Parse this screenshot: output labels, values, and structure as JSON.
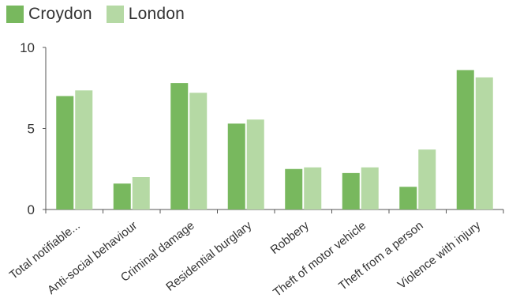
{
  "chart_data": {
    "type": "bar",
    "categories": [
      "Total notifiable...",
      "Anti-social behaviour",
      "Criminal damage",
      "Residential burglary",
      "Robbery",
      "Theft of motor vehicle",
      "Theft from a person",
      "Violence with injury"
    ],
    "series": [
      {
        "name": "Croydon",
        "color": "#78b85e",
        "values": [
          7.0,
          1.6,
          7.8,
          5.3,
          2.5,
          2.25,
          1.4,
          8.6
        ]
      },
      {
        "name": "London",
        "color": "#b5d9a4",
        "values": [
          7.35,
          2.0,
          7.2,
          5.55,
          2.6,
          2.6,
          3.7,
          8.15
        ]
      }
    ],
    "yticks": [
      "0",
      "5",
      "10"
    ],
    "ylim": [
      0,
      10
    ],
    "grid": false,
    "legend_position": "top-left"
  }
}
